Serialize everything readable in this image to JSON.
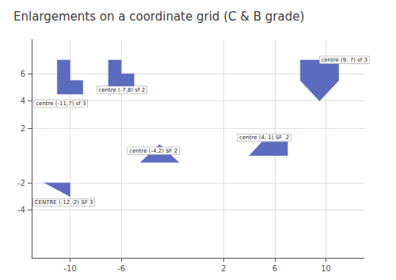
{
  "chart_data": {
    "type": "polygon",
    "title": "Enlargements on a coordinate grid (C & B grade)",
    "color": "#5B6BBF",
    "xlim": [
      -13,
      13
    ],
    "ylim": [
      -7.5,
      8.5
    ],
    "xticks": [
      -10,
      -6,
      2,
      6,
      10
    ],
    "yticks": [
      -4,
      -2,
      2,
      4,
      6
    ],
    "grid": true,
    "shapes": [
      {
        "label": "centre (-11,7) sf 3",
        "label_xy": [
          -12.8,
          3.55
        ],
        "points": [
          [
            -11,
            4.5
          ],
          [
            -11,
            7
          ],
          [
            -10,
            7
          ],
          [
            -10,
            5.5
          ],
          [
            -9,
            5.5
          ],
          [
            -9,
            4.5
          ]
        ]
      },
      {
        "label": "centre (-7,8) sf 2",
        "label_xy": [
          -7.9,
          4.55
        ],
        "points": [
          [
            -7,
            5
          ],
          [
            -7,
            7
          ],
          [
            -6,
            7
          ],
          [
            -6,
            6
          ],
          [
            -5,
            6
          ],
          [
            -5,
            5
          ]
        ]
      },
      {
        "label": "centre (-4,2) SF 2",
        "label_xy": [
          -5.5,
          0.08
        ],
        "points": [
          [
            -4.5,
            -0.5
          ],
          [
            -3,
            0.8
          ],
          [
            -1.5,
            -0.5
          ]
        ]
      },
      {
        "label": "centre (4, 1) SF  2",
        "label_xy": [
          3.1,
          1.05
        ],
        "points": [
          [
            4,
            0
          ],
          [
            5,
            1
          ],
          [
            7,
            1
          ],
          [
            7,
            0
          ]
        ]
      },
      {
        "label": "centre (9, 7) sf 3",
        "label_xy": [
          9.5,
          6.75
        ],
        "points": [
          [
            8,
            7
          ],
          [
            8,
            5.5
          ],
          [
            9.5,
            4
          ],
          [
            11,
            5.5
          ],
          [
            11,
            7
          ]
        ]
      },
      {
        "label": "CENTRE (-12,-2) SF 3",
        "label_xy": [
          -12.9,
          -3.7
        ],
        "points": [
          [
            -12,
            -2
          ],
          [
            -10,
            -2
          ],
          [
            -10,
            -3
          ]
        ]
      }
    ]
  }
}
